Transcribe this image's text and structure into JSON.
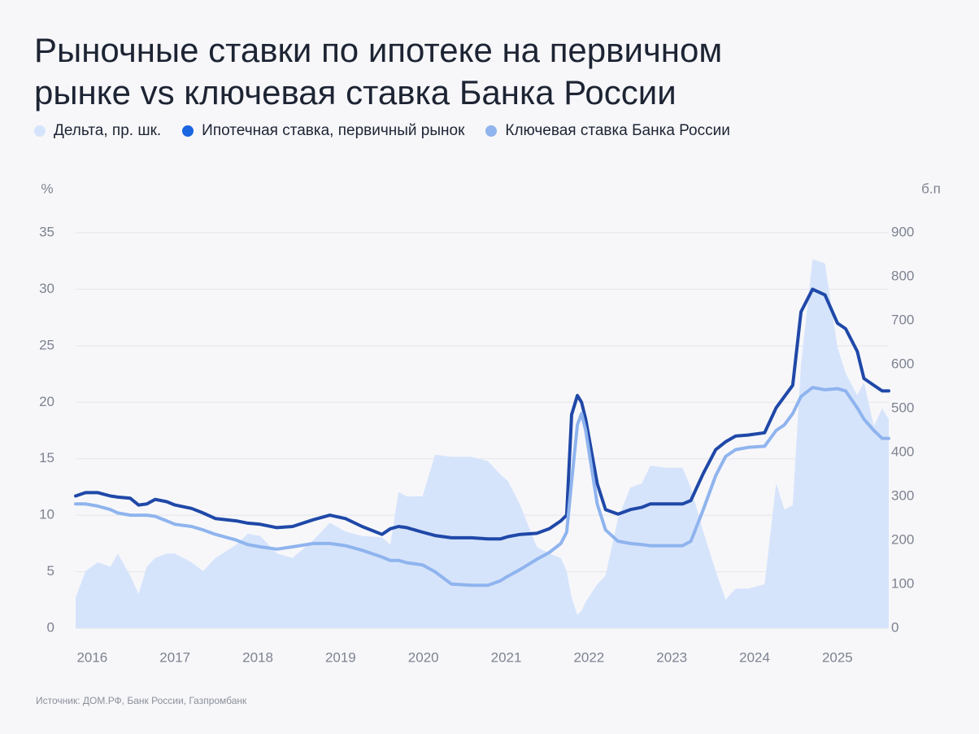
{
  "chart_data": {
    "type": "line",
    "title": "Рыночные ставки по ипотеке на первичном рынке vs ключевая ставка Банка России",
    "y_label": "%",
    "y2_label": "б.п",
    "source": "Источник: ДОМ.РФ, Банк России, Газпромбанк",
    "x": [
      2015.8,
      2015.92,
      2016.07,
      2016.22,
      2016.31,
      2016.46,
      2016.56,
      2016.66,
      2016.76,
      2016.9,
      2017.0,
      2017.2,
      2017.34,
      2017.49,
      2017.74,
      2017.88,
      2018.03,
      2018.23,
      2018.42,
      2018.67,
      2018.87,
      2019.06,
      2019.26,
      2019.5,
      2019.6,
      2019.7,
      2019.8,
      2019.99,
      2020.14,
      2020.34,
      2020.58,
      2020.78,
      2020.93,
      2021.02,
      2021.17,
      2021.37,
      2021.52,
      2021.66,
      2021.73,
      2021.79,
      2021.86,
      2021.91,
      2021.96,
      2022.1,
      2022.2,
      2022.35,
      2022.5,
      2022.64,
      2022.74,
      2022.94,
      2023.13,
      2023.23,
      2023.38,
      2023.53,
      2023.65,
      2023.77,
      2023.92,
      2024.12,
      2024.26,
      2024.36,
      2024.46,
      2024.56,
      2024.7,
      2024.85,
      2025.0,
      2025.1,
      2025.24,
      2025.32,
      2025.44,
      2025.54,
      2025.62
    ],
    "xlim": [
      2015.8,
      2025.62
    ],
    "xticks": [
      2016,
      2017,
      2018,
      2019,
      2020,
      2021,
      2022,
      2023,
      2024,
      2025
    ],
    "ylim": [
      0,
      35
    ],
    "yticks": [
      0,
      5,
      10,
      15,
      20,
      25,
      30,
      35
    ],
    "y2lim": [
      0,
      900
    ],
    "y2ticks": [
      0,
      100,
      200,
      300,
      400,
      500,
      600,
      700,
      800,
      900
    ],
    "grid": true,
    "series": [
      {
        "name": "Дельта, пр. шк.",
        "color": "#d6e4fb",
        "axis": "y2",
        "kind": "area",
        "values": [
          70,
          130,
          150,
          140,
          170,
          120,
          78,
          140,
          160,
          170,
          170,
          150,
          130,
          160,
          190,
          215,
          210,
          170,
          160,
          200,
          240,
          220,
          210,
          207,
          190,
          310,
          300,
          300,
          395,
          390,
          390,
          380,
          350,
          335,
          280,
          185,
          170,
          160,
          130,
          70,
          30,
          40,
          60,
          100,
          120,
          250,
          320,
          330,
          370,
          365,
          365,
          320,
          220,
          130,
          65,
          90,
          90,
          100,
          330,
          270,
          280,
          600,
          840,
          830,
          640,
          580,
          530,
          560,
          460,
          500,
          476
        ]
      },
      {
        "name": "Ипотечная ставка, первичный рынок",
        "color": "#1f48a8",
        "legend_color": "#1a66e0",
        "values": [
          11.7,
          12.0,
          12.0,
          11.7,
          11.6,
          11.5,
          10.9,
          11.0,
          11.4,
          11.2,
          10.9,
          10.6,
          10.2,
          9.7,
          9.5,
          9.3,
          9.2,
          8.9,
          9.0,
          9.6,
          10.0,
          9.7,
          9.0,
          8.3,
          8.8,
          9.0,
          8.9,
          8.5,
          8.2,
          8.0,
          8.0,
          7.9,
          7.9,
          8.1,
          8.3,
          8.4,
          8.8,
          9.5,
          10.0,
          18.9,
          20.6,
          20.0,
          18.5,
          12.8,
          10.5,
          10.1,
          10.5,
          10.7,
          11.0,
          11.0,
          11.0,
          11.3,
          13.7,
          15.8,
          16.5,
          17.0,
          17.1,
          17.3,
          19.5,
          20.5,
          21.5,
          28.0,
          30.0,
          29.5,
          27.0,
          26.5,
          24.5,
          22.1,
          21.5,
          21.0,
          21.0
        ]
      },
      {
        "name": "Ключевая ставка Банка России",
        "color": "#8fb4ee",
        "values": [
          11.0,
          11.0,
          10.8,
          10.5,
          10.2,
          10.0,
          10.0,
          10.0,
          9.9,
          9.5,
          9.2,
          9.0,
          8.7,
          8.3,
          7.8,
          7.4,
          7.2,
          7.0,
          7.2,
          7.5,
          7.5,
          7.3,
          6.9,
          6.3,
          6.0,
          6.0,
          5.8,
          5.6,
          5.0,
          3.9,
          3.8,
          3.8,
          4.2,
          4.6,
          5.2,
          6.1,
          6.7,
          7.5,
          8.5,
          13.0,
          18.0,
          19.0,
          17.5,
          11.0,
          8.7,
          7.7,
          7.5,
          7.4,
          7.3,
          7.3,
          7.3,
          7.7,
          10.5,
          13.5,
          15.2,
          15.8,
          16.0,
          16.1,
          17.5,
          18.0,
          19.0,
          20.5,
          21.3,
          21.1,
          21.2,
          21.0,
          19.5,
          18.5,
          17.5,
          16.8,
          16.8
        ]
      }
    ]
  }
}
